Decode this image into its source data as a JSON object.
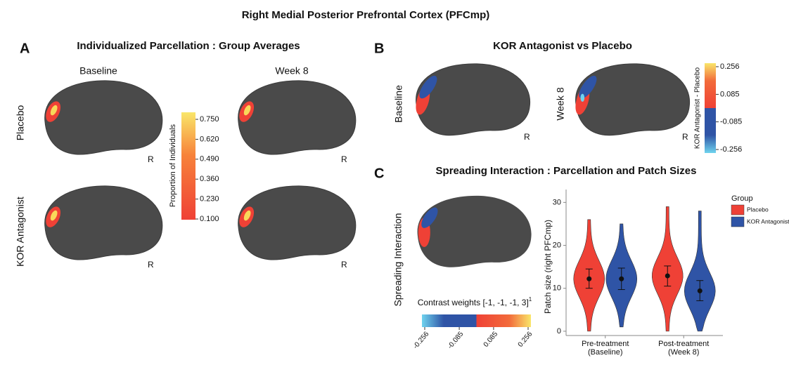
{
  "title": "Right Medial Posterior Prefrontal Cortex (PFCmp)",
  "panel_a": {
    "letter": "A",
    "title": "Individualized Parcellation : Group Averages",
    "columns": [
      "Baseline",
      "Week 8"
    ],
    "rows": [
      "Placebo",
      "KOR Antagonist"
    ],
    "hemisphere": "R",
    "colorbar": {
      "label": "Proportion of Individuals",
      "lim": [
        0.1,
        0.75
      ],
      "ticks": [
        {
          "value": 0.75,
          "label": "0.750"
        },
        {
          "value": 0.62,
          "label": "0.620"
        },
        {
          "value": 0.49,
          "label": "0.490"
        },
        {
          "value": 0.36,
          "label": "0.360"
        },
        {
          "value": 0.23,
          "label": "0.230"
        },
        {
          "value": 0.1,
          "label": "0.100"
        }
      ]
    }
  },
  "panel_b": {
    "letter": "B",
    "title": "KOR Antagonist vs Placebo",
    "rows": [
      "Baseline",
      "Week 8"
    ],
    "hemisphere": "R",
    "colorbar": {
      "label": "KOR Antagonist - Placebo",
      "lim": [
        -0.256,
        0.256
      ],
      "ticks": [
        0.256,
        0.085,
        -0.085,
        -0.256
      ]
    }
  },
  "panel_c": {
    "letter": "C",
    "title": "Spreading Interaction : Parcellation and Patch Sizes",
    "row": "Spreading Interaction",
    "contrast_label": "Contrast weights [-1, -1, -1, 3]",
    "contrast_superscript": "1",
    "colorbar": {
      "lim": [
        -0.256,
        0.256
      ],
      "ticks": [
        -0.256,
        -0.085,
        0.085,
        0.256
      ]
    }
  },
  "chart_data": {
    "type": "violin",
    "ylabel": "Patch size (right PFCmp)",
    "categories": [
      [
        "Pre-treatment",
        "(Baseline)"
      ],
      [
        "Post-treatment",
        "(Week 8)"
      ]
    ],
    "ylim": [
      -1,
      33
    ],
    "yticks": [
      0,
      10,
      20,
      30
    ],
    "legend_title": "Group",
    "series": [
      {
        "name": "Placebo",
        "color": "#ef4136",
        "mean": [
          12.2,
          12.9
        ],
        "ci_low": [
          10,
          10.5
        ],
        "ci_high": [
          14.5,
          15.2
        ],
        "min": [
          0,
          0
        ],
        "max": [
          26,
          29
        ]
      },
      {
        "name": "KOR Antagonist",
        "color": "#2f54a6",
        "mean": [
          12.2,
          9.4
        ],
        "ci_low": [
          9.7,
          7.1
        ],
        "ci_high": [
          14.7,
          11.8
        ],
        "min": [
          1,
          0
        ],
        "max": [
          25,
          28
        ]
      }
    ]
  }
}
